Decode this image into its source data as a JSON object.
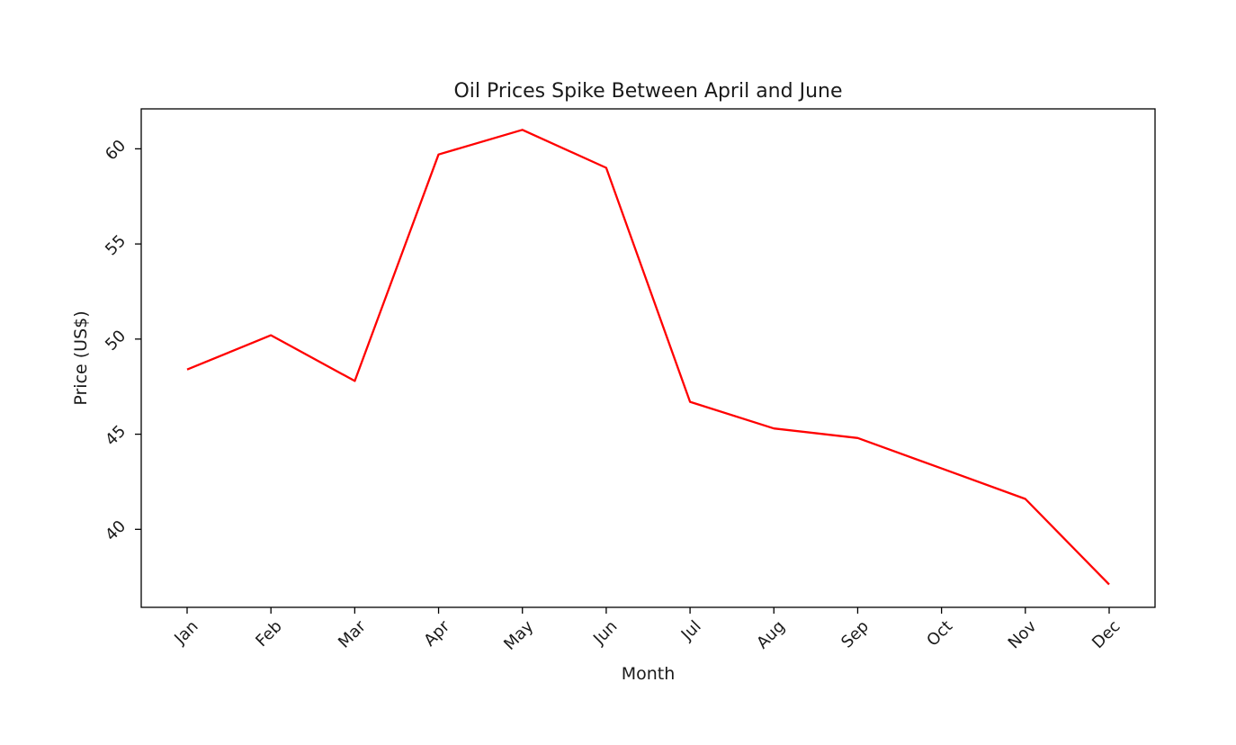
{
  "chart_data": {
    "type": "line",
    "title": "Oil Prices Spike Between April and June",
    "xlabel": "Month",
    "ylabel": "Price (US$)",
    "categories": [
      "Jan",
      "Feb",
      "Mar",
      "Apr",
      "May",
      "Jun",
      "Jul",
      "Aug",
      "Sep",
      "Oct",
      "Nov",
      "Dec"
    ],
    "series": [
      {
        "values": [
          48.4,
          50.2,
          47.8,
          59.7,
          61.0,
          59.0,
          46.7,
          45.3,
          44.8,
          43.2,
          41.6,
          37.1
        ],
        "color": "#ff0000"
      }
    ],
    "yticks": [
      40,
      45,
      50,
      55,
      60
    ],
    "ylim": [
      35.9,
      62.1
    ],
    "grid": false,
    "legend": "none"
  }
}
